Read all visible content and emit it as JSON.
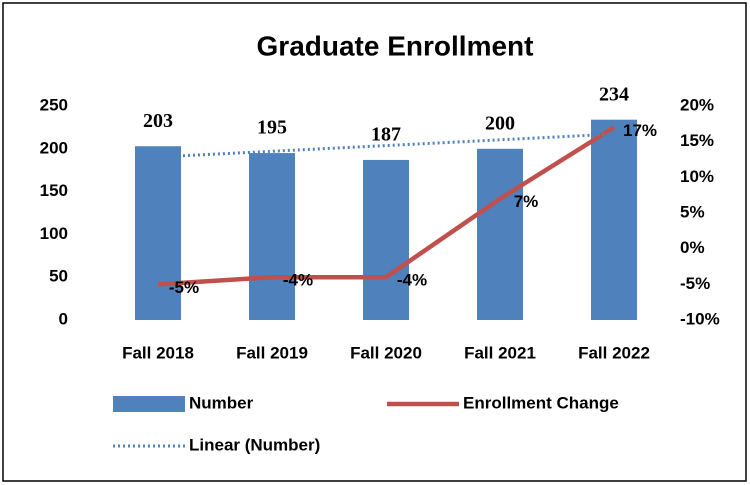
{
  "chart_data": {
    "type": "bar",
    "title": "Graduate Enrollment",
    "categories": [
      "Fall 2018",
      "Fall 2019",
      "Fall 2020",
      "Fall 2021",
      "Fall 2022"
    ],
    "series": [
      {
        "name": "Number",
        "type": "bar",
        "color": "#4f81bd",
        "values": [
          203,
          195,
          187,
          200,
          234
        ]
      },
      {
        "name": "Enrollment Change",
        "type": "line",
        "axis": "y2",
        "color": "#c0504d",
        "values": [
          -5,
          -4,
          -4,
          7,
          17
        ],
        "value_labels": [
          "-5%",
          "-4%",
          "-4%",
          "7%",
          "17%"
        ]
      },
      {
        "name": "Linear (Number)",
        "type": "line",
        "style": "dotted",
        "color": "#4f81bd",
        "values": [
          190.4,
          197.1,
          203.8,
          210.5,
          217.2
        ]
      }
    ],
    "ylim": [
      0,
      250
    ],
    "yticks": [
      0,
      50,
      100,
      150,
      200,
      250
    ],
    "y2lim": [
      -10,
      20
    ],
    "y2ticks": [
      {
        "value": -10,
        "label": "-10%"
      },
      {
        "value": -5,
        "label": "-5%"
      },
      {
        "value": 0,
        "label": "0%"
      },
      {
        "value": 5,
        "label": "5%"
      },
      {
        "value": 10,
        "label": "10%"
      },
      {
        "value": 15,
        "label": "15%"
      },
      {
        "value": 20,
        "label": "20%"
      }
    ],
    "grid": false,
    "legend": "bottom"
  }
}
